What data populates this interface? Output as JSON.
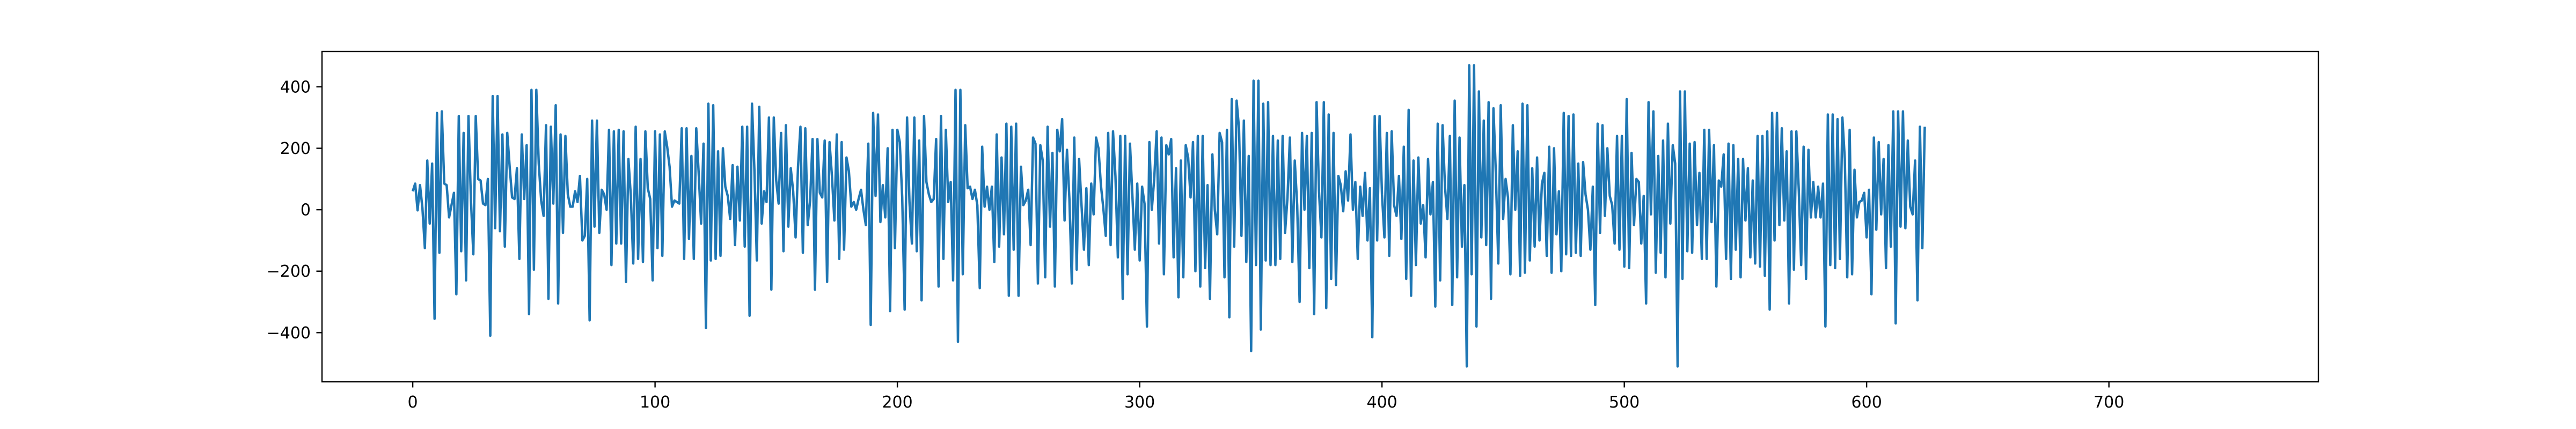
{
  "chart_data": {
    "type": "line",
    "title": "",
    "xlabel": "",
    "ylabel": "",
    "xlim": [
      -37.45,
      786.45
    ],
    "ylim": [
      -560,
      515
    ],
    "x_ticks": [
      0,
      100,
      200,
      300,
      400,
      500,
      600,
      700
    ],
    "y_ticks": [
      -400,
      -200,
      0,
      200,
      400
    ],
    "x_tick_labels": [
      "0",
      "100",
      "200",
      "300",
      "400",
      "500",
      "600",
      "700"
    ],
    "y_tick_labels": [
      "−400",
      "−200",
      "0",
      "200",
      "400"
    ],
    "grid": false,
    "line_color": "#1f77b4",
    "series": [
      {
        "x_start": 0,
        "x_step": 1,
        "values": [
          60,
          85,
          -2,
          80,
          5,
          -125,
          160,
          -45,
          150,
          -355,
          315,
          -140,
          320,
          85,
          80,
          -25,
          15,
          55,
          -275,
          305,
          -135,
          250,
          -230,
          305,
          35,
          -145,
          305,
          100,
          95,
          20,
          15,
          100,
          -410,
          370,
          -60,
          370,
          -70,
          245,
          -120,
          250,
          140,
          40,
          35,
          135,
          -160,
          245,
          35,
          210,
          -340,
          390,
          -195,
          390,
          150,
          30,
          -20,
          275,
          -290,
          270,
          20,
          340,
          -305,
          245,
          -75,
          240,
          50,
          10,
          10,
          60,
          25,
          110,
          -100,
          -85,
          100,
          -360,
          290,
          -55,
          290,
          -75,
          65,
          50,
          0,
          260,
          -180,
          255,
          -110,
          260,
          -110,
          255,
          -235,
          165,
          45,
          -175,
          270,
          -160,
          165,
          -170,
          255,
          70,
          35,
          -230,
          255,
          -125,
          245,
          -150,
          255,
          205,
          140,
          10,
          30,
          25,
          20,
          265,
          -160,
          265,
          -95,
          175,
          -160,
          265,
          120,
          -45,
          215,
          -385,
          345,
          -165,
          340,
          -160,
          190,
          -150,
          200,
          75,
          45,
          -30,
          145,
          -115,
          140,
          -35,
          270,
          -120,
          270,
          -345,
          345,
          130,
          -165,
          335,
          -45,
          60,
          25,
          300,
          -260,
          300,
          95,
          20,
          250,
          -135,
          275,
          -55,
          135,
          60,
          -90,
          140,
          270,
          -140,
          265,
          -50,
          30,
          230,
          -260,
          230,
          55,
          40,
          225,
          -235,
          220,
          110,
          -35,
          245,
          -160,
          220,
          -130,
          170,
          125,
          10,
          25,
          0,
          35,
          65,
          0,
          -50,
          215,
          -375,
          315,
          45,
          310,
          -40,
          80,
          -25,
          200,
          -330,
          260,
          -125,
          260,
          220,
          40,
          -325,
          300,
          25,
          -110,
          300,
          -135,
          225,
          -295,
          305,
          90,
          50,
          25,
          35,
          230,
          -250,
          305,
          -160,
          260,
          25,
          90,
          -230,
          390,
          -430,
          390,
          -210,
          275,
          70,
          75,
          35,
          65,
          15,
          -255,
          205,
          10,
          75,
          0,
          75,
          -170,
          245,
          -120,
          170,
          -80,
          280,
          -280,
          270,
          -130,
          280,
          -280,
          140,
          15,
          30,
          65,
          -115,
          235,
          215,
          -240,
          210,
          160,
          -220,
          270,
          -55,
          185,
          -250,
          260,
          190,
          295,
          -35,
          195,
          35,
          -240,
          235,
          -195,
          165,
          15,
          -130,
          70,
          -180,
          85,
          -15,
          235,
          200,
          80,
          5,
          -85,
          250,
          -115,
          255,
          110,
          -155,
          240,
          -290,
          240,
          -210,
          215,
          45,
          -130,
          85,
          -165,
          75,
          20,
          -380,
          220,
          0,
          100,
          255,
          -110,
          235,
          -210,
          210,
          180,
          230,
          -155,
          135,
          -285,
          160,
          -220,
          210,
          170,
          40,
          220,
          -200,
          240,
          -250,
          240,
          -190,
          80,
          -290,
          180,
          0,
          -80,
          250,
          220,
          -220,
          260,
          -350,
          360,
          -120,
          355,
          265,
          -85,
          290,
          -170,
          175,
          -460,
          420,
          -180,
          420,
          -390,
          345,
          -165,
          350,
          -180,
          240,
          -180,
          225,
          -160,
          240,
          -75,
          40,
          235,
          -170,
          160,
          15,
          -300,
          250,
          0,
          240,
          -190,
          250,
          -340,
          350,
          60,
          -90,
          350,
          -320,
          310,
          -225,
          250,
          -245,
          110,
          80,
          -5,
          125,
          30,
          245,
          0,
          90,
          -160,
          75,
          -20,
          120,
          -100,
          70,
          -415,
          305,
          -100,
          305,
          50,
          -90,
          250,
          -150,
          255,
          15,
          -20,
          110,
          -95,
          205,
          -225,
          325,
          -280,
          160,
          -180,
          170,
          -45,
          15,
          -155,
          165,
          -15,
          90,
          -315,
          280,
          -230,
          275,
          75,
          -30,
          240,
          -310,
          355,
          -220,
          235,
          -120,
          80,
          -510,
          470,
          -210,
          470,
          -380,
          385,
          -90,
          290,
          -115,
          350,
          -290,
          330,
          115,
          -175,
          340,
          -30,
          100,
          40,
          -210,
          275,
          0,
          190,
          -215,
          345,
          -205,
          340,
          -165,
          135,
          -120,
          170,
          -100,
          85,
          120,
          -150,
          205,
          -205,
          200,
          -80,
          60,
          -200,
          315,
          -145,
          305,
          -150,
          310,
          -140,
          150,
          -150,
          155,
          50,
          0,
          -130,
          75,
          -310,
          280,
          -75,
          275,
          -20,
          200,
          45,
          15,
          -110,
          240,
          -130,
          240,
          -185,
          360,
          -190,
          185,
          -50,
          100,
          90,
          -110,
          45,
          -305,
          350,
          -15,
          320,
          -205,
          175,
          -140,
          225,
          -220,
          280,
          -45,
          210,
          150,
          -510,
          385,
          -225,
          385,
          -135,
          215,
          -140,
          220,
          -50,
          120,
          -160,
          260,
          -160,
          260,
          -40,
          210,
          -250,
          95,
          75,
          180,
          -160,
          215,
          -225,
          210,
          -130,
          165,
          -220,
          165,
          -35,
          135,
          -155,
          95,
          -175,
          240,
          -185,
          240,
          -215,
          255,
          -325,
          315,
          -100,
          315,
          -50,
          265,
          -35,
          190,
          -305,
          255,
          -195,
          255,
          65,
          -180,
          205,
          -225,
          195,
          -25,
          90,
          -25,
          75,
          -25,
          85,
          -380,
          310,
          -180,
          310,
          -190,
          295,
          -160,
          300,
          165,
          -220,
          260,
          -210,
          130,
          -25,
          25,
          30,
          55,
          -90,
          65,
          -275,
          235,
          -65,
          220,
          -15,
          165,
          -190,
          210,
          -120,
          320,
          -370,
          320,
          -55,
          320,
          -60,
          225,
          10,
          -15,
          160,
          -295,
          270,
          -125,
          270
        ]
      }
    ]
  }
}
